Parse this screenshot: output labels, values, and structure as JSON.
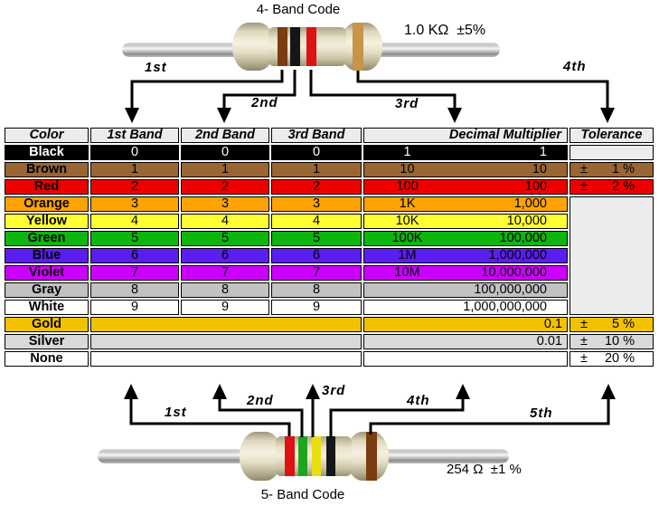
{
  "four_band": {
    "title": "4- Band Code",
    "value_label": "1.0 KΩ  ±5%",
    "arrow_labels": [
      "1st",
      "2nd",
      "3rd",
      "4th"
    ],
    "band_colors": [
      "brown",
      "black",
      "red",
      "gold"
    ]
  },
  "five_band": {
    "title": "5- Band Code",
    "value_label": "254 Ω  ±1 %",
    "arrow_labels": [
      "1st",
      "2nd",
      "3rd",
      "4th",
      "5th"
    ],
    "band_colors": [
      "red",
      "green",
      "yellow",
      "black",
      "brown"
    ]
  },
  "band_palette": {
    "brown": "#7a3c10",
    "black": "#161616",
    "red": "#dd1212",
    "gold": "#c89447",
    "green": "#1da51d",
    "yellow": "#e6df10"
  },
  "table": {
    "headers": [
      "Color",
      "1st Band",
      "2nd Band",
      "3rd Band",
      "Decimal Multiplier",
      "Tolerance"
    ],
    "plus_minus": "±",
    "header_bg": "#ececec",
    "empty_tolerance_bg": "#ececec",
    "rows": [
      {
        "name": "Black",
        "bg": "#000000",
        "fg": "#ffffff",
        "band1": "0",
        "band2": "0",
        "band3": "0",
        "mult_code": "1",
        "mult_value": "1",
        "tolerance": "",
        "tolerance_bg": "#ececec"
      },
      {
        "name": "Brown",
        "bg": "#996633",
        "fg": "#000000",
        "band1": "1",
        "band2": "1",
        "band3": "1",
        "mult_code": "10",
        "mult_value": "10",
        "tolerance": "1 %",
        "tolerance_bg": "#996633"
      },
      {
        "name": "Red",
        "bg": "#ee0000",
        "fg": "#000000",
        "band1": "2",
        "band2": "2",
        "band3": "2",
        "mult_code": "100",
        "mult_value": "100",
        "tolerance": "2 %",
        "tolerance_bg": "#ee0000"
      },
      {
        "name": "Orange",
        "bg": "#ffa300",
        "fg": "#000000",
        "band1": "3",
        "band2": "3",
        "band3": "3",
        "mult_code": "1K",
        "mult_value": "1,000",
        "tolerance": null
      },
      {
        "name": "Yellow",
        "bg": "#ffff33",
        "fg": "#000000",
        "band1": "4",
        "band2": "4",
        "band3": "4",
        "mult_code": "10K",
        "mult_value": "10,000",
        "tolerance": null
      },
      {
        "name": "Green",
        "bg": "#0db50d",
        "fg": "#000000",
        "band1": "5",
        "band2": "5",
        "band3": "5",
        "mult_code": "100K",
        "mult_value": "100,000",
        "tolerance": null
      },
      {
        "name": "Blue",
        "bg": "#5a1ef0",
        "fg": "#000000",
        "band1": "6",
        "band2": "6",
        "band3": "6",
        "mult_code": "1M",
        "mult_value": "1,000,000",
        "tolerance": null
      },
      {
        "name": "Violet",
        "bg": "#cc00fe",
        "fg": "#000000",
        "band1": "7",
        "band2": "7",
        "band3": "7",
        "mult_code": "10M",
        "mult_value": "10,000,000",
        "tolerance": null
      },
      {
        "name": "Gray",
        "bg": "#c2c2c2",
        "fg": "#000000",
        "band1": "8",
        "band2": "8",
        "band3": "8",
        "mult_code": "",
        "mult_value": "100,000,000",
        "tolerance": null
      },
      {
        "name": "White",
        "bg": "#ffffff",
        "fg": "#000000",
        "band1": "9",
        "band2": "9",
        "band3": "9",
        "mult_code": "",
        "mult_value": "1,000,000,000",
        "tolerance": null
      },
      {
        "name": "Gold",
        "bg": "#f2c200",
        "fg": "#000000",
        "merged_bands": true,
        "mult_code": "",
        "mult_value": "0.1",
        "tolerance": "5 %",
        "tolerance_bg": "#f2c200"
      },
      {
        "name": "Silver",
        "bg": "#d9d9d9",
        "fg": "#000000",
        "merged_bands": true,
        "mult_code": "",
        "mult_value": "0.01",
        "tolerance": "10 %",
        "tolerance_bg": "#d9d9d9"
      },
      {
        "name": "None",
        "bg": "#ffffff",
        "fg": "#000000",
        "merged_bands": true,
        "mult_code": "",
        "mult_value": "",
        "tolerance": "20 %",
        "tolerance_bg": "#ffffff"
      }
    ]
  }
}
